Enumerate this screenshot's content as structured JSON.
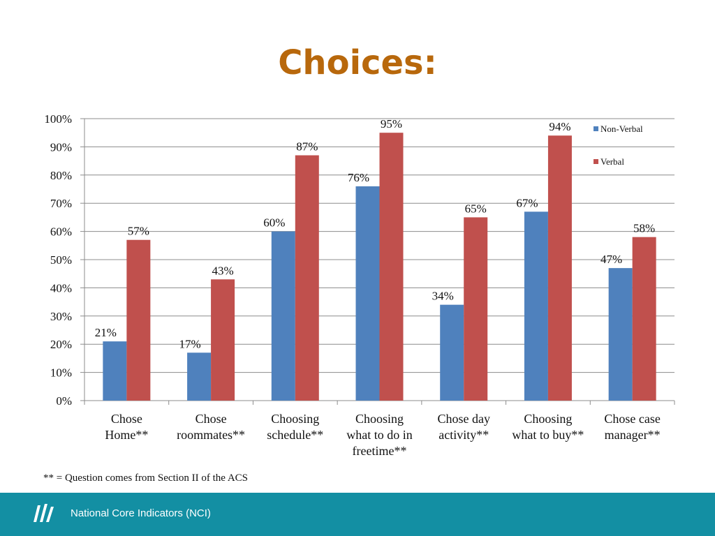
{
  "slide": {
    "title": "Choices:",
    "footnote": "** = Question comes from Section II of the ACS",
    "footer_label": "National Core Indicators (NCI)",
    "logo_icon": "nci-logo-icon"
  },
  "colors": {
    "title": "#b8680c",
    "footer": "#138fa3",
    "non_verbal": "#4f81bd",
    "verbal": "#c0504d"
  },
  "chart_data": {
    "type": "bar",
    "categories": [
      [
        "Chose",
        "Home**"
      ],
      [
        "Chose",
        "roommates**"
      ],
      [
        "Choosing",
        "schedule**"
      ],
      [
        "Choosing",
        "what to do in",
        "freetime**"
      ],
      [
        "Chose day",
        "activity**"
      ],
      [
        "Choosing",
        "what to buy**"
      ],
      [
        "Chose case",
        "manager**"
      ]
    ],
    "series": [
      {
        "name": "Non-Verbal",
        "values": [
          21,
          17,
          60,
          76,
          34,
          67,
          47
        ],
        "labels": [
          "21%",
          "17%",
          "60%",
          "76%",
          "34%",
          "67%",
          "47%"
        ],
        "color": "#4f81bd"
      },
      {
        "name": "Verbal",
        "values": [
          57,
          43,
          87,
          95,
          65,
          94,
          58
        ],
        "labels": [
          "57%",
          "43%",
          "87%",
          "95%",
          "65%",
          "94%",
          "58%"
        ],
        "color": "#c0504d"
      }
    ],
    "ylim": [
      0,
      100
    ],
    "yticks": [
      "0%",
      "10%",
      "20%",
      "30%",
      "40%",
      "50%",
      "60%",
      "70%",
      "80%",
      "90%",
      "100%"
    ],
    "grid": true,
    "legend": "right",
    "xlabel": "",
    "ylabel": ""
  }
}
